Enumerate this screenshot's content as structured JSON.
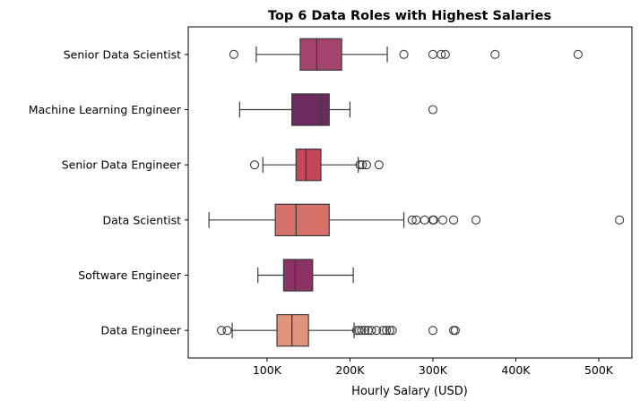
{
  "chart_data": {
    "type": "box",
    "orientation": "horizontal",
    "title": "Top 6 Data Roles with Highest Salaries",
    "xlabel": "Hourly Salary (USD)",
    "ylabel": "",
    "xlim": [
      5000,
      540000
    ],
    "x_ticks": [
      100000,
      200000,
      300000,
      400000,
      500000
    ],
    "x_tick_labels": [
      "100K",
      "200K",
      "300K",
      "400K",
      "500K"
    ],
    "grid": false,
    "legend": false,
    "categories": [
      "Senior Data Scientist",
      "Machine Learning Engineer",
      "Senior Data Engineer",
      "Data Scientist",
      "Software Engineer",
      "Data Engineer"
    ],
    "boxes": [
      {
        "category": "Senior Data Scientist",
        "color": "#a3446d",
        "whisker_low": 87000,
        "q1": 140000,
        "median": 160000,
        "q3": 190000,
        "whisker_high": 245000,
        "outliers": [
          60000,
          265000,
          300000,
          310000,
          315000,
          375000,
          475000
        ]
      },
      {
        "category": "Machine Learning Engineer",
        "color": "#6b2a60",
        "whisker_low": 67000,
        "q1": 130000,
        "median": 165000,
        "q3": 175000,
        "whisker_high": 200000,
        "outliers": [
          300000
        ]
      },
      {
        "category": "Senior Data Engineer",
        "color": "#c44659",
        "whisker_low": 95000,
        "q1": 135000,
        "median": 147000,
        "q3": 165000,
        "whisker_high": 210000,
        "outliers": [
          85000,
          212000,
          215000,
          220000,
          235000
        ]
      },
      {
        "category": "Data Scientist",
        "color": "#d6716a",
        "whisker_low": 30000,
        "q1": 110000,
        "median": 135000,
        "q3": 175000,
        "whisker_high": 265000,
        "outliers": [
          275000,
          280000,
          290000,
          300000,
          301000,
          312000,
          325000,
          352000,
          525000
        ]
      },
      {
        "category": "Software Engineer",
        "color": "#8c3266",
        "whisker_low": 89000,
        "q1": 120000,
        "median": 134000,
        "q3": 155000,
        "whisker_high": 204000,
        "outliers": []
      },
      {
        "category": "Data Engineer",
        "color": "#e0947b",
        "whisker_low": 58000,
        "q1": 112000,
        "median": 130000,
        "q3": 150000,
        "whisker_high": 205000,
        "outliers": [
          45000,
          52000,
          208000,
          211000,
          214000,
          218000,
          222000,
          226000,
          232000,
          240000,
          244000,
          248000,
          251000,
          300000,
          325000,
          327000
        ]
      }
    ]
  }
}
